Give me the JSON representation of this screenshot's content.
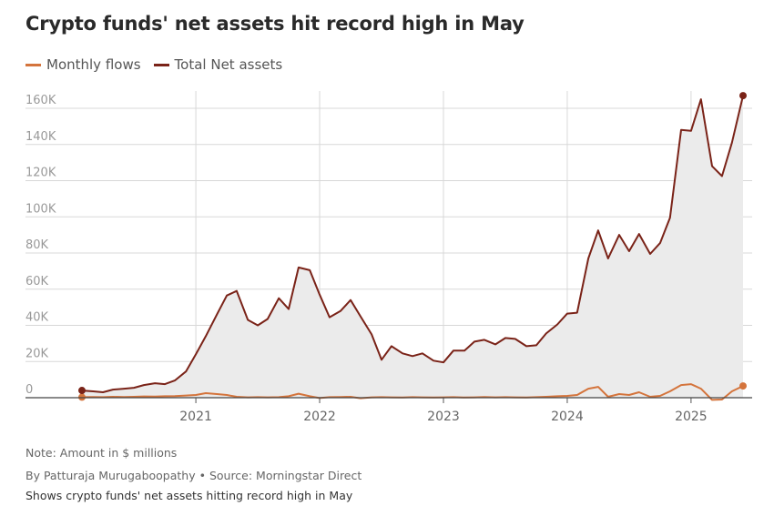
{
  "title": "Crypto funds' net assets hit record high in May",
  "footer": {
    "note": "Note: Amount in $ millions",
    "byline": "By Patturaja Murugaboopathy • Source: Morningstar Direct",
    "caption": "Shows crypto funds' net assets hitting record high in May"
  },
  "colors": {
    "monthly_flows": "#d4743c",
    "total_net_assets": "#7a2318",
    "area_fill": "#ebebeb",
    "grid": "#d8d8d8"
  },
  "chart_data": {
    "type": "line",
    "xlabel": "",
    "ylabel": "",
    "ylim": [
      0,
      170000
    ],
    "yticks": [
      {
        "value": 0,
        "label": "0"
      },
      {
        "value": 20000,
        "label": "20K"
      },
      {
        "value": 40000,
        "label": "40K"
      },
      {
        "value": 60000,
        "label": "60K"
      },
      {
        "value": 80000,
        "label": "80K"
      },
      {
        "value": 100000,
        "label": "100K"
      },
      {
        "value": 120000,
        "label": "120K"
      },
      {
        "value": 140000,
        "label": "140K"
      },
      {
        "value": 160000,
        "label": "160K"
      }
    ],
    "xticks": [
      {
        "value": 2021,
        "label": "2021"
      },
      {
        "value": 2022,
        "label": "2022"
      },
      {
        "value": 2023,
        "label": "2023"
      },
      {
        "value": 2024,
        "label": "2024"
      },
      {
        "value": 2025,
        "label": "2025"
      }
    ],
    "grid": true,
    "legend_position": "top-left",
    "series": [
      {
        "name": "Monthly flows",
        "color": "#d4743c",
        "area": false,
        "x": [
          2020.08,
          2020.17,
          2020.25,
          2020.33,
          2020.42,
          2020.5,
          2020.58,
          2020.67,
          2020.75,
          2020.83,
          2020.92,
          2021.0,
          2021.08,
          2021.17,
          2021.25,
          2021.33,
          2021.42,
          2021.5,
          2021.58,
          2021.67,
          2021.75,
          2021.83,
          2021.92,
          2022.0,
          2022.08,
          2022.17,
          2022.25,
          2022.33,
          2022.42,
          2022.5,
          2022.58,
          2022.67,
          2022.75,
          2022.83,
          2022.92,
          2023.0,
          2023.08,
          2023.17,
          2023.25,
          2023.33,
          2023.42,
          2023.5,
          2023.58,
          2023.67,
          2023.75,
          2023.83,
          2023.92,
          2024.0,
          2024.08,
          2024.17,
          2024.25,
          2024.33,
          2024.42,
          2024.5,
          2024.58,
          2024.67,
          2024.75,
          2024.83,
          2024.92,
          2025.0,
          2025.08,
          2025.17,
          2025.25,
          2025.33,
          2025.42
        ],
        "values": [
          300,
          400,
          300,
          500,
          400,
          500,
          700,
          600,
          800,
          900,
          1200,
          1500,
          2500,
          2000,
          1500,
          500,
          200,
          300,
          200,
          300,
          800,
          2200,
          800,
          -200,
          300,
          400,
          500,
          -300,
          200,
          300,
          200,
          100,
          300,
          200,
          100,
          200,
          300,
          100,
          200,
          400,
          200,
          300,
          200,
          100,
          300,
          500,
          800,
          1000,
          1500,
          5000,
          6000,
          500,
          2000,
          1500,
          3000,
          500,
          1000,
          3500,
          7000,
          7500,
          5000,
          -1200,
          -1000,
          3500,
          6500
        ]
      },
      {
        "name": "Total Net assets",
        "color": "#7a2318",
        "area": true,
        "x": [
          2020.08,
          2020.17,
          2020.25,
          2020.33,
          2020.42,
          2020.5,
          2020.58,
          2020.67,
          2020.75,
          2020.83,
          2020.92,
          2021.0,
          2021.08,
          2021.17,
          2021.25,
          2021.33,
          2021.42,
          2021.5,
          2021.58,
          2021.67,
          2021.75,
          2021.83,
          2021.92,
          2022.0,
          2022.08,
          2022.17,
          2022.25,
          2022.33,
          2022.42,
          2022.5,
          2022.58,
          2022.67,
          2022.75,
          2022.83,
          2022.92,
          2023.0,
          2023.08,
          2023.17,
          2023.25,
          2023.33,
          2023.42,
          2023.5,
          2023.58,
          2023.67,
          2023.75,
          2023.83,
          2023.92,
          2024.0,
          2024.08,
          2024.17,
          2024.25,
          2024.33,
          2024.42,
          2024.5,
          2024.58,
          2024.67,
          2024.75,
          2024.83,
          2024.92,
          2025.0,
          2025.08,
          2025.17,
          2025.25,
          2025.33,
          2025.42
        ],
        "values": [
          4000,
          3500,
          3000,
          4500,
          5000,
          5500,
          7000,
          8000,
          7500,
          9500,
          14500,
          24000,
          34000,
          46000,
          56500,
          59000,
          43000,
          40000,
          43500,
          55000,
          49000,
          72000,
          70500,
          57000,
          44500,
          48000,
          54000,
          45000,
          35000,
          21000,
          28500,
          24500,
          23000,
          24500,
          20500,
          19500,
          26000,
          26000,
          31000,
          32000,
          29500,
          33000,
          32500,
          28500,
          29000,
          35500,
          40500,
          46500,
          47000,
          77000,
          92500,
          77000,
          90000,
          81000,
          90500,
          79500,
          85500,
          99500,
          148000,
          147500,
          165000,
          128000,
          122500,
          141000,
          167000
        ]
      }
    ]
  }
}
